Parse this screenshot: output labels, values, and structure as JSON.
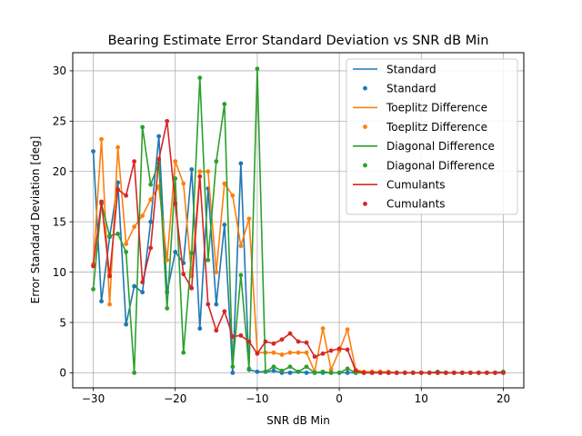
{
  "chart_data": {
    "type": "line",
    "title": "Bearing Estimate Error Standard Deviation vs SNR dB Min",
    "xlabel": "SNR dB Min",
    "ylabel": "Error Standard Deviation [deg]",
    "xlim": [
      -32.5,
      22.5
    ],
    "ylim": [
      -1.5,
      31.8
    ],
    "xticks": [
      -30,
      -20,
      -10,
      0,
      10,
      20
    ],
    "xtick_labels": [
      "−30",
      "−20",
      "−10",
      "0",
      "10",
      "20"
    ],
    "yticks": [
      0,
      5,
      10,
      15,
      20,
      25,
      30
    ],
    "ytick_labels": [
      "0",
      "5",
      "10",
      "15",
      "20",
      "25",
      "30"
    ],
    "grid": true,
    "legend_position": "top-right",
    "x": [
      -30,
      -29,
      -28,
      -27,
      -26,
      -25,
      -24,
      -23,
      -22,
      -21,
      -20,
      -19,
      -18,
      -17,
      -16,
      -15,
      -14,
      -13,
      -12,
      -11,
      -10,
      -9,
      -8,
      -7,
      -6,
      -5,
      -4,
      -3,
      -2,
      -1,
      0,
      1,
      2,
      3,
      4,
      5,
      6,
      7,
      8,
      9,
      10,
      11,
      12,
      13,
      14,
      15,
      16,
      17,
      18,
      19,
      20
    ],
    "series": [
      {
        "name": "Standard",
        "color": "#1f77b4",
        "values": [
          22.0,
          7.1,
          13.5,
          18.9,
          4.8,
          8.6,
          8.0,
          15.0,
          23.5,
          8.0,
          12.0,
          10.9,
          20.2,
          4.4,
          18.3,
          6.8,
          14.7,
          0.0,
          20.8,
          0.3,
          0.1,
          0.1,
          0.2,
          0.0,
          0.0,
          0.1,
          0.0,
          0.0,
          0.0,
          0.0,
          0.0,
          0.0,
          0.0,
          0.0,
          0.0,
          0.0,
          0.0,
          0.0,
          0.0,
          0.0,
          0.0,
          0.0,
          0.0,
          0.0,
          0.0,
          0.0,
          0.0,
          0.0,
          0.0,
          0.0,
          0.0
        ]
      },
      {
        "name": "Toeplitz Difference",
        "color": "#ff7f0e",
        "values": [
          10.8,
          23.2,
          6.8,
          22.4,
          12.8,
          14.5,
          15.6,
          17.2,
          18.5,
          11.2,
          21.0,
          18.8,
          9.6,
          20.0,
          20.0,
          10.0,
          18.8,
          17.6,
          12.6,
          15.3,
          2.0,
          2.0,
          2.0,
          1.8,
          2.0,
          2.0,
          2.0,
          0.1,
          4.4,
          0.3,
          2.2,
          4.3,
          0.3,
          0.1,
          0.1,
          0.1,
          0.1,
          0.0,
          0.0,
          0.0,
          0.0,
          0.0,
          0.0,
          0.0,
          0.0,
          0.0,
          0.0,
          0.0,
          0.0,
          0.0,
          0.0
        ]
      },
      {
        "name": "Diagonal Difference",
        "color": "#2ca02c",
        "values": [
          8.3,
          16.8,
          13.6,
          13.8,
          12.0,
          0.0,
          24.4,
          18.7,
          20.8,
          6.4,
          19.3,
          2.0,
          11.9,
          29.3,
          11.2,
          21.0,
          26.7,
          0.6,
          9.7,
          0.4,
          30.2,
          0.1,
          0.6,
          0.2,
          0.6,
          0.1,
          0.6,
          0.0,
          0.1,
          0.0,
          0.0,
          0.4,
          0.0,
          0.0,
          0.0,
          0.0,
          0.0,
          0.0,
          0.0,
          0.0,
          0.0,
          0.0,
          0.1,
          0.0,
          0.0,
          0.0,
          0.0,
          0.0,
          0.0,
          0.0,
          0.1
        ]
      },
      {
        "name": "Cumulants",
        "color": "#d62728",
        "values": [
          10.6,
          17.0,
          9.6,
          18.2,
          17.6,
          21.0,
          9.0,
          12.4,
          21.2,
          25.0,
          16.8,
          9.8,
          8.4,
          19.5,
          6.8,
          4.2,
          6.1,
          3.6,
          3.7,
          3.1,
          1.9,
          3.1,
          2.9,
          3.3,
          3.9,
          3.1,
          3.0,
          1.6,
          1.9,
          2.2,
          2.4,
          2.3,
          0.2,
          0.0,
          0.0,
          0.0,
          0.0,
          0.0,
          0.0,
          0.0,
          0.0,
          0.0,
          0.0,
          0.0,
          0.0,
          0.0,
          0.0,
          0.0,
          0.0,
          0.0,
          0.0
        ]
      }
    ],
    "legend_entries": [
      {
        "label": "Standard",
        "kind": "line",
        "color": "#1f77b4"
      },
      {
        "label": "Standard",
        "kind": "marker",
        "color": "#1f77b4"
      },
      {
        "label": "Toeplitz Difference",
        "kind": "line",
        "color": "#ff7f0e"
      },
      {
        "label": "Toeplitz Difference",
        "kind": "marker",
        "color": "#ff7f0e"
      },
      {
        "label": "Diagonal Difference",
        "kind": "line",
        "color": "#2ca02c"
      },
      {
        "label": "Diagonal Difference",
        "kind": "marker",
        "color": "#2ca02c"
      },
      {
        "label": "Cumulants",
        "kind": "line",
        "color": "#d62728"
      },
      {
        "label": "Cumulants",
        "kind": "marker",
        "color": "#d62728"
      }
    ]
  }
}
